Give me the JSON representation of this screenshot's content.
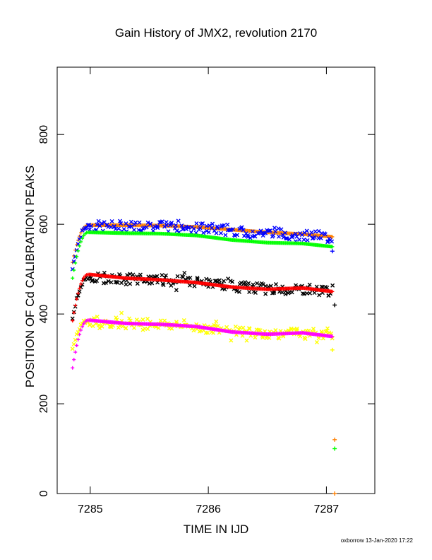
{
  "chart_data": {
    "type": "scatter",
    "title": "Gain History of JMX2, revolution 2170",
    "xlabel": "TIME IN IJD",
    "ylabel": "POSITION OF Cd CALIBRATION PEAKS",
    "xlim": [
      7284.72,
      7287.41
    ],
    "ylim": [
      0,
      950
    ],
    "x_ticks": [
      7285,
      7286,
      7287
    ],
    "x_tick_labels": [
      "7285",
      "7286",
      "7287"
    ],
    "y_ticks": [
      0,
      200,
      400,
      600,
      800
    ],
    "y_tick_labels": [
      "0",
      "200",
      "400",
      "600",
      "800"
    ],
    "grid": false,
    "footer": "oxborrow 13-Jan-2020 17:22",
    "series": [
      {
        "color": "#ff7f00",
        "marker": "+",
        "style": "smooth",
        "start": 515,
        "level": 598,
        "x": [
          7285.0,
          7285.3,
          7285.6,
          7285.9,
          7286.2,
          7286.5,
          7286.8,
          7287.05
        ],
        "y": [
          598,
          598,
          597,
          594,
          588,
          582,
          578,
          572
        ]
      },
      {
        "color": "#0000ff",
        "marker": "x",
        "style": "noisy",
        "noise": 12,
        "start": 500,
        "level": 595,
        "x": [
          7285.0,
          7285.3,
          7285.6,
          7285.9,
          7286.2,
          7286.5,
          7286.8,
          7287.05
        ],
        "y": [
          595,
          596,
          595,
          592,
          587,
          580,
          577,
          570
        ]
      },
      {
        "color": "#00ff00",
        "marker": "+",
        "style": "smooth",
        "start": 480,
        "level": 582,
        "x": [
          7285.0,
          7285.3,
          7285.6,
          7285.9,
          7286.2,
          7286.5,
          7286.8,
          7287.05
        ],
        "y": [
          582,
          580,
          579,
          575,
          565,
          559,
          557,
          550
        ]
      },
      {
        "color": "#000000",
        "marker": "x",
        "style": "noisy",
        "noise": 12,
        "start": 390,
        "level": 482,
        "x": [
          7285.0,
          7285.3,
          7285.6,
          7285.9,
          7286.2,
          7286.5,
          7286.8,
          7287.05
        ],
        "y": [
          482,
          478,
          476,
          470,
          462,
          456,
          456,
          452
        ]
      },
      {
        "color": "#ff0000",
        "marker": "+",
        "style": "smooth",
        "start": 385,
        "level": 488,
        "x": [
          7285.0,
          7285.3,
          7285.6,
          7285.9,
          7286.2,
          7286.5,
          7286.8,
          7287.05
        ],
        "y": [
          488,
          480,
          476,
          470,
          460,
          455,
          458,
          450
        ]
      },
      {
        "color": "#ffff00",
        "marker": "x",
        "style": "noisy",
        "noise": 12,
        "start": 320,
        "level": 385,
        "x": [
          7285.0,
          7285.3,
          7285.6,
          7285.9,
          7286.2,
          7286.5,
          7286.8,
          7287.05
        ],
        "y": [
          385,
          380,
          378,
          372,
          362,
          357,
          357,
          352
        ]
      },
      {
        "color": "#ff00ff",
        "marker": "+",
        "style": "smooth",
        "start": 280,
        "level": 386,
        "x": [
          7285.0,
          7285.3,
          7285.6,
          7285.9,
          7286.2,
          7286.5,
          7286.8,
          7287.05
        ],
        "y": [
          386,
          379,
          377,
          372,
          360,
          355,
          358,
          350
        ]
      }
    ],
    "outliers": [
      {
        "color": "#ff7f00",
        "x": 7287.07,
        "y": 120
      },
      {
        "color": "#00ff00",
        "x": 7287.07,
        "y": 100
      },
      {
        "color": "#ff7f00",
        "x": 7287.07,
        "y": 0
      },
      {
        "color": "#ffff00",
        "x": 7287.05,
        "y": 320
      },
      {
        "color": "#000000",
        "x": 7287.07,
        "y": 420
      },
      {
        "color": "#0000ff",
        "x": 7287.05,
        "y": 540
      }
    ]
  }
}
